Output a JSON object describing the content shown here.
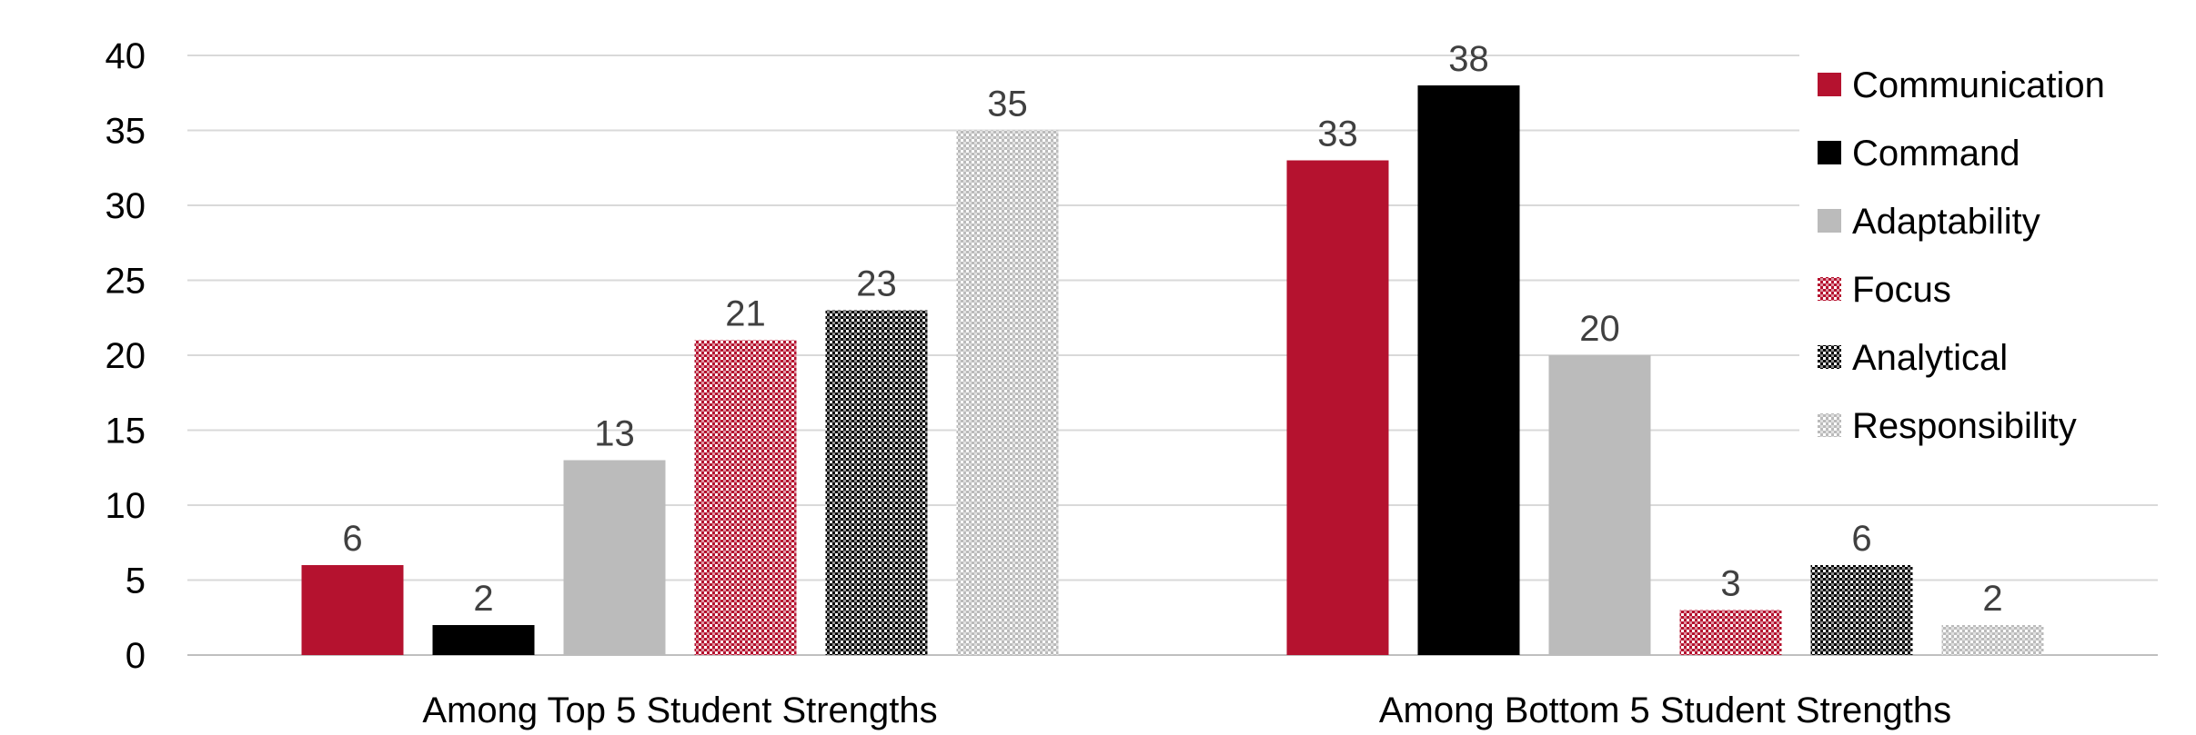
{
  "chart_data": {
    "type": "bar",
    "categories": [
      "Among Top 5 Student Strengths",
      "Among Bottom 5 Student Strengths"
    ],
    "series": [
      {
        "name": "Communication",
        "values": [
          6,
          33
        ],
        "color": "#B5122F",
        "pattern": "solid"
      },
      {
        "name": "Command",
        "values": [
          2,
          38
        ],
        "color": "#000000",
        "pattern": "solid"
      },
      {
        "name": "Adaptability",
        "values": [
          13,
          20
        ],
        "color": "#BBBBBB",
        "pattern": "solid"
      },
      {
        "name": "Focus",
        "values": [
          21,
          3
        ],
        "color": "#B5122F",
        "pattern": "textured"
      },
      {
        "name": "Analytical",
        "values": [
          23,
          6
        ],
        "color": "#000000",
        "pattern": "textured"
      },
      {
        "name": "Responsibility",
        "values": [
          35,
          2
        ],
        "color": "#BBBBBB",
        "pattern": "textured"
      }
    ],
    "ylim": [
      0,
      40
    ],
    "yticks": [
      0,
      5,
      10,
      15,
      20,
      25,
      30,
      35,
      40
    ],
    "grid": true,
    "legend_position": "right",
    "data_labels": true
  }
}
